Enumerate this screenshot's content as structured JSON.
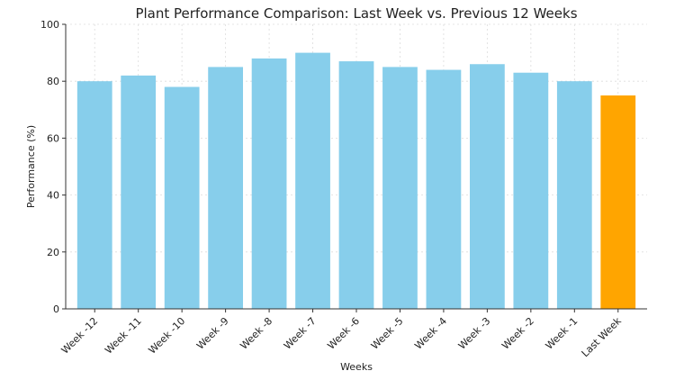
{
  "chart_data": {
    "type": "bar",
    "title": "Plant Performance Comparison: Last Week vs. Previous 12 Weeks",
    "xlabel": "Weeks",
    "ylabel": "Performance (%)",
    "ylim": [
      0,
      100
    ],
    "yticks": [
      0,
      20,
      40,
      60,
      80,
      100
    ],
    "grid": true,
    "categories": [
      "Week -12",
      "Week -11",
      "Week -10",
      "Week -9",
      "Week -8",
      "Week -7",
      "Week -6",
      "Week -5",
      "Week -4",
      "Week -3",
      "Week -2",
      "Week -1",
      "Last Week"
    ],
    "values": [
      80,
      82,
      78,
      85,
      88,
      90,
      87,
      85,
      84,
      86,
      83,
      80,
      75
    ],
    "colors": {
      "previous": "#87CEEB",
      "highlight": "#FFA500"
    },
    "highlight_index": 12
  }
}
